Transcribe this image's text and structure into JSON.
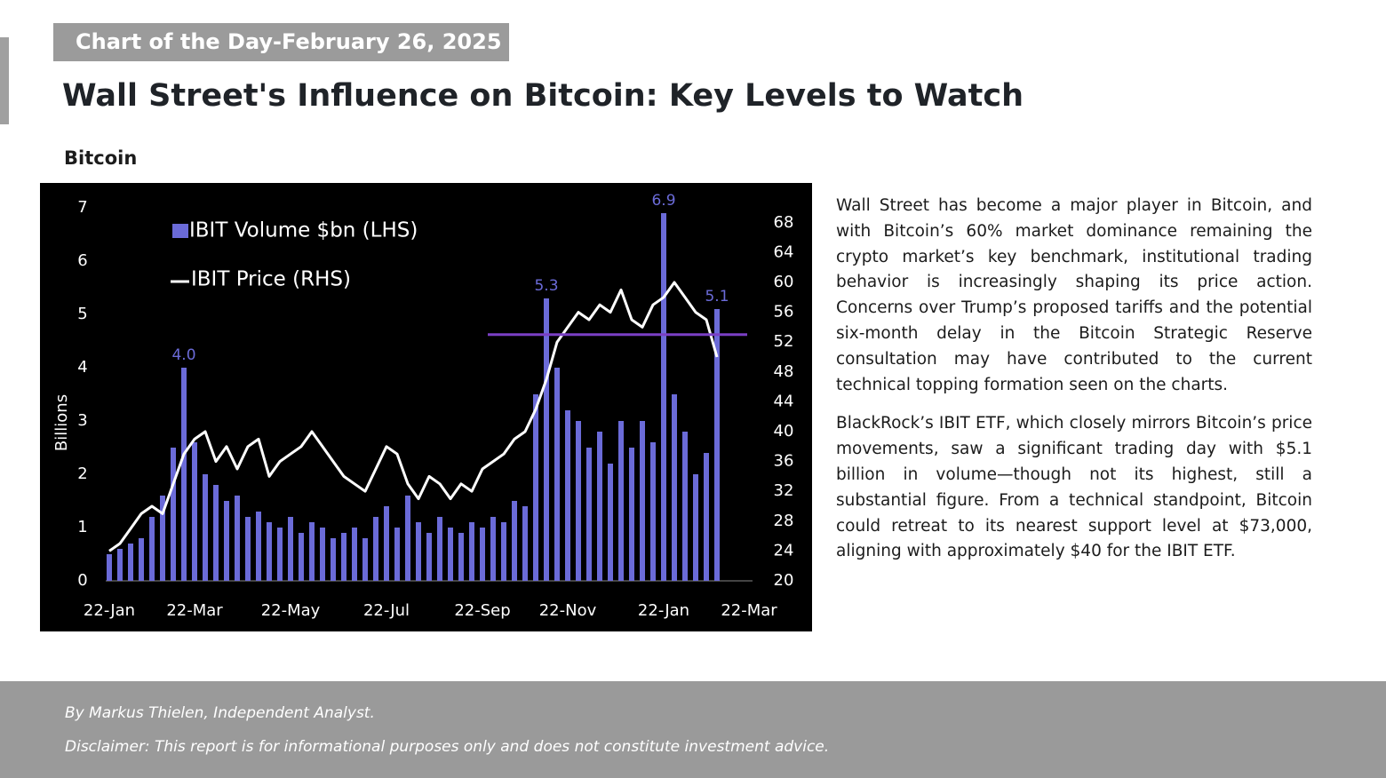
{
  "header": {
    "tag": "Chart of the Day-February 26, 2025",
    "title": "Wall Street's Influence on Bitcoin: Key Levels to Watch",
    "subtitle": "Bitcoin"
  },
  "chart_data": {
    "type": "bar",
    "ylabel": "Billions",
    "categories": [
      "22-Jan",
      null,
      null,
      null,
      null,
      null,
      null,
      null,
      "22-Mar",
      null,
      null,
      null,
      null,
      null,
      null,
      null,
      null,
      "22-May",
      null,
      null,
      null,
      null,
      null,
      null,
      null,
      null,
      "22-Jul",
      null,
      null,
      null,
      null,
      null,
      null,
      null,
      null,
      "22-Sep",
      null,
      null,
      null,
      null,
      null,
      null,
      null,
      "22-Nov",
      null,
      null,
      null,
      null,
      null,
      null,
      null,
      null,
      "22-Jan",
      null,
      null,
      null,
      null,
      null,
      null,
      null,
      "22-Mar"
    ],
    "series": [
      {
        "name": "IBIT Volume $bn (LHS)",
        "type": "bar",
        "color": "#6b6bd8",
        "values": [
          0.5,
          0.6,
          0.7,
          0.8,
          1.2,
          1.6,
          2.5,
          4.0,
          2.6,
          2.0,
          1.8,
          1.5,
          1.6,
          1.2,
          1.3,
          1.1,
          1.0,
          1.2,
          0.9,
          1.1,
          1.0,
          0.8,
          0.9,
          1.0,
          0.8,
          1.2,
          1.4,
          1.0,
          1.6,
          1.1,
          0.9,
          1.2,
          1.0,
          0.9,
          1.1,
          1.0,
          1.2,
          1.1,
          1.5,
          1.4,
          3.5,
          5.3,
          4.0,
          3.2,
          3.0,
          2.5,
          2.8,
          2.2,
          3.0,
          2.5,
          3.0,
          2.6,
          6.9,
          3.5,
          2.8,
          2.0,
          2.4,
          5.1,
          null,
          null,
          null
        ],
        "value_labels": [
          null,
          null,
          null,
          null,
          null,
          null,
          null,
          "4.0",
          null,
          null,
          null,
          null,
          null,
          null,
          null,
          null,
          null,
          null,
          null,
          null,
          null,
          null,
          null,
          null,
          null,
          null,
          null,
          null,
          null,
          null,
          null,
          null,
          null,
          null,
          null,
          null,
          null,
          null,
          null,
          null,
          null,
          "5.3",
          null,
          null,
          null,
          null,
          null,
          null,
          null,
          null,
          null,
          null,
          "6.9",
          null,
          null,
          null,
          null,
          "5.1",
          null,
          null,
          null
        ]
      },
      {
        "name": "IBIT Price (RHS)",
        "type": "line",
        "axis": "y2",
        "color": "#ffffff",
        "values": [
          24,
          25,
          27,
          29,
          30,
          29,
          33,
          37,
          39,
          40,
          36,
          38,
          35,
          38,
          39,
          34,
          36,
          37,
          38,
          40,
          38,
          36,
          34,
          33,
          32,
          35,
          38,
          37,
          33,
          31,
          34,
          33,
          31,
          33,
          32,
          35,
          36,
          37,
          39,
          40,
          43,
          47,
          52,
          54,
          56,
          55,
          57,
          56,
          59,
          55,
          54,
          57,
          58,
          60,
          58,
          56,
          55,
          50,
          null,
          null,
          null
        ]
      }
    ],
    "ylim": [
      0,
      7
    ],
    "yticks": [
      0,
      1,
      2,
      3,
      4,
      5,
      6,
      7
    ],
    "y2lim": [
      20,
      70
    ],
    "y2ticks": [
      20,
      24,
      28,
      32,
      36,
      40,
      44,
      48,
      52,
      56,
      60,
      64,
      68
    ],
    "reference_line": {
      "value": 53,
      "axis": "y2",
      "color": "#7a3fc4"
    },
    "background": "#000000"
  },
  "body": {
    "paragraphs": [
      "Wall Street has become a major player in Bitcoin, and with Bitcoin’s 60% market dominance remaining the crypto market’s key benchmark, institutional trading behavior is increasingly shaping its price action. Concerns over Trump’s proposed tariffs and the potential six-month delay in the Bitcoin Strategic Reserve consultation may have contributed to the current technical topping formation seen on the charts.",
      "BlackRock’s IBIT ETF, which closely mirrors Bitcoin’s price movements, saw a significant trading day with $5.1 billion in volume—though not its highest, still a substantial figure.  From a technical standpoint, Bitcoin could retreat to its nearest support level at $73,000, aligning with approximately $40 for the IBIT ETF."
    ]
  },
  "footer": {
    "author": "By Markus Thielen, Independent Analyst.",
    "disclaimer": "Disclaimer: This report is for informational purposes only and does not constitute investment advice."
  }
}
